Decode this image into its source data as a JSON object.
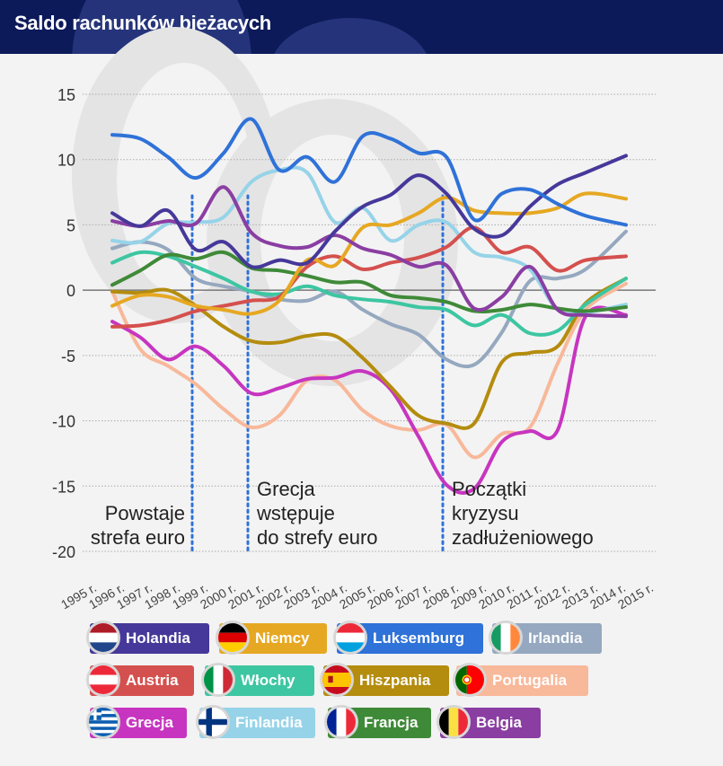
{
  "header": {
    "title": "Saldo rachunków bieżacych"
  },
  "chart_data": {
    "type": "line",
    "title": "Saldo rachunków bieżacych",
    "xlabel": "",
    "ylabel": "",
    "ylim": [
      -20,
      15
    ],
    "yticks": [
      15,
      10,
      5,
      0,
      -5,
      -10,
      -15,
      -20
    ],
    "ytick_labels": [
      "15",
      "10",
      "5",
      "0",
      "-5",
      "-10",
      "-15",
      "-20"
    ],
    "x_tick_labels": [
      "1995 r.",
      "1996 r.",
      "1997 r.",
      "1998 r.",
      "1999 r.",
      "2000 r.",
      "2001 r.",
      "2002 r.",
      "2003 r.",
      "2004 r.",
      "2005 r.",
      "2006 r.",
      "2007 r.",
      "2008 r.",
      "2009 r.",
      "2010 r.",
      "2011 r.",
      "2012 r.",
      "2013 r.",
      "2014 r.",
      "2015 r."
    ],
    "x": [
      1996,
      1997,
      1998,
      1999,
      2000,
      2001,
      2002,
      2003,
      2004,
      2005,
      2006,
      2007,
      2008,
      2009,
      2010,
      2011,
      2012,
      2013,
      2014
    ],
    "grid": true,
    "legend_position": "bottom",
    "annotations": [
      {
        "year": 1999,
        "lines": [
          "Powstaje",
          "strefa euro"
        ],
        "align": "left-of-line"
      },
      {
        "year": 2001,
        "lines": [
          "Grecja",
          "wstępuje",
          "do strefy euro"
        ],
        "align": "right-of-line"
      },
      {
        "year": 2008,
        "lines": [
          "Początki",
          "kryzysu",
          "zadłużeniowego"
        ],
        "align": "right-of-line"
      }
    ],
    "series": [
      {
        "name": "Holandia",
        "color": "#46389a",
        "flag": "nl",
        "values": [
          5.9,
          4.9,
          6.1,
          3.1,
          3.7,
          1.8,
          2.3,
          2.1,
          4.5,
          6.4,
          7.3,
          8.8,
          7.4,
          4.7,
          4.2,
          6.4,
          8.1,
          9.0,
          10.3
        ]
      },
      {
        "name": "Niemcy",
        "color": "#e6a823",
        "flag": "de",
        "values": [
          -1.2,
          -0.4,
          -0.5,
          -1.2,
          -1.5,
          -1.8,
          -0.8,
          2.3,
          1.9,
          4.8,
          5.0,
          5.9,
          7.1,
          6.1,
          5.9,
          5.9,
          6.3,
          7.4,
          7.0
        ]
      },
      {
        "name": "Luksemburg",
        "color": "#2f72d8",
        "flag": "lu",
        "values": [
          11.9,
          11.6,
          10.2,
          8.6,
          10.5,
          13.1,
          9.2,
          10.2,
          8.3,
          11.8,
          11.6,
          10.5,
          10.2,
          5.4,
          7.4,
          7.7,
          6.6,
          5.7,
          5.0
        ]
      },
      {
        "name": "Irlandia",
        "color": "#95a8bf",
        "flag": "ie",
        "values": [
          3.2,
          3.7,
          3.1,
          0.9,
          0.3,
          -0.1,
          -0.7,
          -0.8,
          -0.1,
          -1.5,
          -2.6,
          -3.4,
          -5.3,
          -5.7,
          -3.2,
          0.7,
          0.9,
          1.6,
          4.5
        ]
      },
      {
        "name": "Austria",
        "color": "#d4504e",
        "flag": "at",
        "values": [
          -2.8,
          -2.7,
          -2.3,
          -1.6,
          -1.2,
          -0.8,
          -0.5,
          1.8,
          2.6,
          1.6,
          2.1,
          2.5,
          3.3,
          4.8,
          2.9,
          3.3,
          1.5,
          2.3,
          2.6
        ]
      },
      {
        "name": "Włochy",
        "color": "#3dc6a2",
        "flag": "it",
        "values": [
          2.1,
          2.9,
          2.6,
          1.8,
          0.9,
          -0.1,
          -0.3,
          0.3,
          -0.4,
          -0.7,
          -0.9,
          -1.3,
          -1.5,
          -2.7,
          -1.9,
          -3.3,
          -3.1,
          -1.1,
          0.9
        ]
      },
      {
        "name": "Hiszpania",
        "color": "#b48c0e",
        "flag": "es",
        "values": [
          -0.1,
          -0.2,
          0.0,
          -1.2,
          -2.8,
          -3.9,
          -4.0,
          -3.5,
          -3.5,
          -5.2,
          -7.4,
          -9.6,
          -10.2,
          -10.2,
          -5.5,
          -4.8,
          -4.3,
          -1.0,
          0.9
        ]
      },
      {
        "name": "Portugalia",
        "color": "#f8b89a",
        "flag": "pt",
        "values": [
          -0.1,
          -4.5,
          -5.8,
          -7.2,
          -9.1,
          -10.5,
          -9.6,
          -6.9,
          -6.9,
          -9.2,
          -10.4,
          -10.7,
          -10.3,
          -12.8,
          -11.0,
          -10.5,
          -5.6,
          -1.5,
          0.5
        ]
      },
      {
        "name": "Grecja",
        "color": "#c735c0",
        "flag": "gr",
        "values": [
          -2.4,
          -3.6,
          -5.3,
          -4.3,
          -5.8,
          -7.9,
          -7.5,
          -6.8,
          -6.7,
          -6.2,
          -7.6,
          -11.2,
          -14.9,
          -15.2,
          -11.6,
          -10.8,
          -10.7,
          -2.0,
          -1.9
        ]
      },
      {
        "name": "Finlandia",
        "color": "#96d3e8",
        "flag": "fi",
        "values": [
          3.8,
          3.7,
          5.1,
          5.2,
          5.6,
          8.3,
          9.2,
          9.0,
          5.2,
          6.3,
          3.8,
          5.0,
          5.2,
          2.9,
          2.5,
          1.6,
          -1.5,
          -1.7,
          -1.1
        ]
      },
      {
        "name": "Francja",
        "color": "#3f8a38",
        "flag": "fr",
        "values": [
          0.4,
          1.5,
          2.7,
          2.4,
          2.9,
          1.7,
          1.5,
          1.1,
          0.6,
          0.6,
          -0.4,
          -0.6,
          -0.9,
          -1.6,
          -1.5,
          -1.1,
          -1.4,
          -1.6,
          -1.3
        ]
      },
      {
        "name": "Belgia",
        "color": "#8a3ea2",
        "flag": "be",
        "values": [
          5.3,
          4.9,
          5.3,
          5.1,
          7.9,
          4.4,
          3.4,
          3.3,
          4.2,
          3.2,
          2.7,
          1.8,
          1.9,
          -1.4,
          -0.5,
          1.8,
          -1.5,
          -1.9,
          -2.0
        ]
      }
    ]
  }
}
